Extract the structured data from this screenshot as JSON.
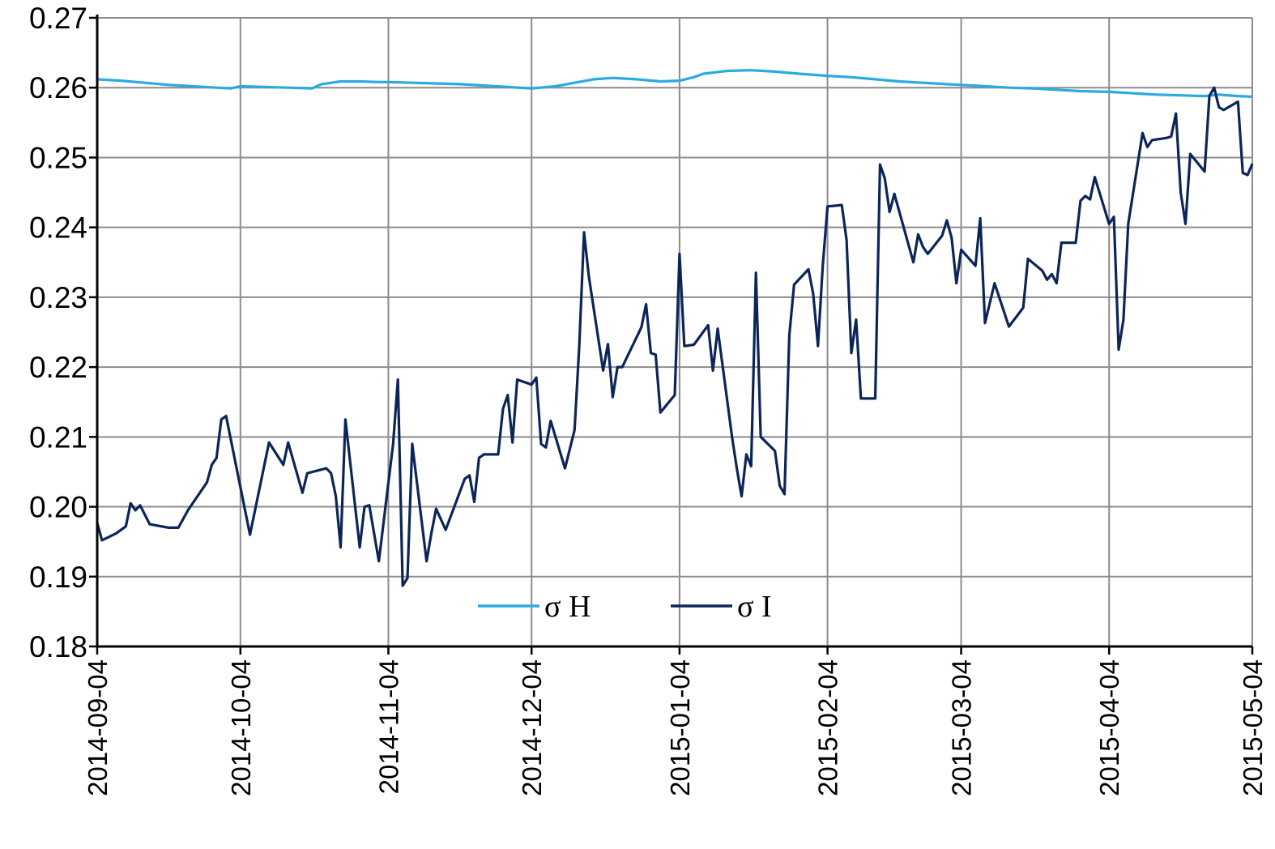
{
  "chart_data": {
    "type": "line",
    "title": "",
    "xlabel": "",
    "ylabel": "",
    "x_range": [
      "2014-09-04",
      "2015-05-04"
    ],
    "ylim": [
      0.18,
      0.27
    ],
    "y_ticks": [
      "0.18",
      "0.19",
      "0.20",
      "0.21",
      "0.22",
      "0.23",
      "0.24",
      "0.25",
      "0.26",
      "0.27"
    ],
    "x_ticks": [
      "2014-09-04",
      "2014-10-04",
      "2014-11-04",
      "2014-12-04",
      "2015-01-04",
      "2015-02-04",
      "2015-03-04",
      "2015-04-04",
      "2015-05-04"
    ],
    "grid": true,
    "legend_position": "bottom-center",
    "series": [
      {
        "name": "σ H",
        "color": "#29abe2",
        "points": [
          [
            "2014-09-04",
            0.2612
          ],
          [
            "2014-09-09",
            0.261
          ],
          [
            "2014-09-14",
            0.2607
          ],
          [
            "2014-09-19",
            0.2604
          ],
          [
            "2014-09-24",
            0.2602
          ],
          [
            "2014-09-29",
            0.26
          ],
          [
            "2014-10-02",
            0.2599
          ],
          [
            "2014-10-04",
            0.2602
          ],
          [
            "2014-10-09",
            0.2601
          ],
          [
            "2014-10-14",
            0.26
          ],
          [
            "2014-10-19",
            0.2599
          ],
          [
            "2014-10-21",
            0.2605
          ],
          [
            "2014-10-25",
            0.2609
          ],
          [
            "2014-10-29",
            0.2609
          ],
          [
            "2014-11-02",
            0.2608
          ],
          [
            "2014-11-04",
            0.2608
          ],
          [
            "2014-11-09",
            0.2607
          ],
          [
            "2014-11-14",
            0.2606
          ],
          [
            "2014-11-19",
            0.2605
          ],
          [
            "2014-11-24",
            0.2603
          ],
          [
            "2014-11-29",
            0.2601
          ],
          [
            "2014-12-04",
            0.2599
          ],
          [
            "2014-12-09",
            0.2602
          ],
          [
            "2014-12-13",
            0.2607
          ],
          [
            "2014-12-17",
            0.2612
          ],
          [
            "2014-12-21",
            0.2614
          ],
          [
            "2014-12-26",
            0.2612
          ],
          [
            "2014-12-31",
            0.2609
          ],
          [
            "2015-01-04",
            0.261
          ],
          [
            "2015-01-07",
            0.2615
          ],
          [
            "2015-01-09",
            0.262
          ],
          [
            "2015-01-14",
            0.2624
          ],
          [
            "2015-01-19",
            0.2625
          ],
          [
            "2015-01-24",
            0.2623
          ],
          [
            "2015-01-29",
            0.262
          ],
          [
            "2015-02-04",
            0.2617
          ],
          [
            "2015-02-09",
            0.2615
          ],
          [
            "2015-02-14",
            0.2612
          ],
          [
            "2015-02-19",
            0.2609
          ],
          [
            "2015-02-24",
            0.2607
          ],
          [
            "2015-03-01",
            0.2605
          ],
          [
            "2015-03-04",
            0.2604
          ],
          [
            "2015-03-09",
            0.2602
          ],
          [
            "2015-03-14",
            0.26
          ],
          [
            "2015-03-19",
            0.2599
          ],
          [
            "2015-03-24",
            0.2597
          ],
          [
            "2015-03-29",
            0.2595
          ],
          [
            "2015-04-04",
            0.2594
          ],
          [
            "2015-04-09",
            0.2592
          ],
          [
            "2015-04-14",
            0.259
          ],
          [
            "2015-04-19",
            0.2589
          ],
          [
            "2015-04-24",
            0.2588
          ],
          [
            "2015-04-27",
            0.259
          ],
          [
            "2015-05-01",
            0.2588
          ],
          [
            "2015-05-04",
            0.2587
          ]
        ]
      },
      {
        "name": "σ I",
        "color": "#0c2559",
        "points": [
          [
            "2014-09-04",
            0.1977
          ],
          [
            "2014-09-05",
            0.1952
          ],
          [
            "2014-09-08",
            0.1962
          ],
          [
            "2014-09-10",
            0.1972
          ],
          [
            "2014-09-11",
            0.2005
          ],
          [
            "2014-09-12",
            0.1995
          ],
          [
            "2014-09-13",
            0.2002
          ],
          [
            "2014-09-15",
            0.1975
          ],
          [
            "2014-09-19",
            0.197
          ],
          [
            "2014-09-21",
            0.197
          ],
          [
            "2014-09-23",
            0.1995
          ],
          [
            "2014-09-27",
            0.2035
          ],
          [
            "2014-09-28",
            0.206
          ],
          [
            "2014-09-29",
            0.207
          ],
          [
            "2014-09-30",
            0.2125
          ],
          [
            "2014-10-01",
            0.213
          ],
          [
            "2014-10-06",
            0.196
          ],
          [
            "2014-10-10",
            0.2092
          ],
          [
            "2014-10-13",
            0.206
          ],
          [
            "2014-10-14",
            0.2092
          ],
          [
            "2014-10-17",
            0.202
          ],
          [
            "2014-10-18",
            0.2048
          ],
          [
            "2014-10-22",
            0.2055
          ],
          [
            "2014-10-23",
            0.2048
          ],
          [
            "2014-10-24",
            0.2015
          ],
          [
            "2014-10-25",
            0.1942
          ],
          [
            "2014-10-26",
            0.2125
          ],
          [
            "2014-10-29",
            0.1942
          ],
          [
            "2014-10-30",
            0.2
          ],
          [
            "2014-10-31",
            0.2002
          ],
          [
            "2014-11-02",
            0.1922
          ],
          [
            "2014-11-05",
            0.209
          ],
          [
            "2014-11-06",
            0.2182
          ],
          [
            "2014-11-07",
            0.1887
          ],
          [
            "2014-11-08",
            0.1898
          ],
          [
            "2014-11-09",
            0.209
          ],
          [
            "2014-11-12",
            0.1922
          ],
          [
            "2014-11-13",
            0.1962
          ],
          [
            "2014-11-14",
            0.1997
          ],
          [
            "2014-11-16",
            0.1967
          ],
          [
            "2014-11-20",
            0.204
          ],
          [
            "2014-11-21",
            0.2045
          ],
          [
            "2014-11-22",
            0.2007
          ],
          [
            "2014-11-23",
            0.207
          ],
          [
            "2014-11-24",
            0.2075
          ],
          [
            "2014-11-27",
            0.2075
          ],
          [
            "2014-11-28",
            0.214
          ],
          [
            "2014-11-29",
            0.216
          ],
          [
            "2014-11-30",
            0.2092
          ],
          [
            "2014-12-01",
            0.2182
          ],
          [
            "2014-12-04",
            0.2175
          ],
          [
            "2014-12-05",
            0.2185
          ],
          [
            "2014-12-06",
            0.209
          ],
          [
            "2014-12-07",
            0.2085
          ],
          [
            "2014-12-08",
            0.2123
          ],
          [
            "2014-12-11",
            0.2055
          ],
          [
            "2014-12-13",
            0.211
          ],
          [
            "2014-12-14",
            0.223
          ],
          [
            "2014-12-15",
            0.2393
          ],
          [
            "2014-12-16",
            0.233
          ],
          [
            "2014-12-19",
            0.2195
          ],
          [
            "2014-12-20",
            0.2233
          ],
          [
            "2014-12-21",
            0.2157
          ],
          [
            "2014-12-22",
            0.22
          ],
          [
            "2014-12-23",
            0.22
          ],
          [
            "2014-12-27",
            0.2257
          ],
          [
            "2014-12-28",
            0.229
          ],
          [
            "2014-12-29",
            0.222
          ],
          [
            "2014-12-30",
            0.2218
          ],
          [
            "2014-12-31",
            0.2135
          ],
          [
            "2015-01-03",
            0.216
          ],
          [
            "2015-01-04",
            0.2362
          ],
          [
            "2015-01-05",
            0.223
          ],
          [
            "2015-01-07",
            0.2232
          ],
          [
            "2015-01-10",
            0.226
          ],
          [
            "2015-01-11",
            0.2195
          ],
          [
            "2015-01-12",
            0.2255
          ],
          [
            "2015-01-15",
            0.21
          ],
          [
            "2015-01-16",
            0.2055
          ],
          [
            "2015-01-17",
            0.2015
          ],
          [
            "2015-01-18",
            0.2075
          ],
          [
            "2015-01-19",
            0.2058
          ],
          [
            "2015-01-20",
            0.2335
          ],
          [
            "2015-01-21",
            0.21
          ],
          [
            "2015-01-24",
            0.208
          ],
          [
            "2015-01-25",
            0.203
          ],
          [
            "2015-01-26",
            0.2018
          ],
          [
            "2015-01-27",
            0.2245
          ],
          [
            "2015-01-28",
            0.2318
          ],
          [
            "2015-01-31",
            0.234
          ],
          [
            "2015-02-01",
            0.2305
          ],
          [
            "2015-02-02",
            0.223
          ],
          [
            "2015-02-03",
            0.2345
          ],
          [
            "2015-02-04",
            0.243
          ],
          [
            "2015-02-07",
            0.2432
          ],
          [
            "2015-02-08",
            0.2382
          ],
          [
            "2015-02-09",
            0.222
          ],
          [
            "2015-02-10",
            0.2268
          ],
          [
            "2015-02-11",
            0.2155
          ],
          [
            "2015-02-14",
            0.2155
          ],
          [
            "2015-02-15",
            0.249
          ],
          [
            "2015-02-16",
            0.247
          ],
          [
            "2015-02-17",
            0.2422
          ],
          [
            "2015-02-18",
            0.2448
          ],
          [
            "2015-02-22",
            0.235
          ],
          [
            "2015-02-23",
            0.239
          ],
          [
            "2015-02-24",
            0.2372
          ],
          [
            "2015-02-25",
            0.2362
          ],
          [
            "2015-02-28",
            0.2388
          ],
          [
            "2015-03-01",
            0.241
          ],
          [
            "2015-03-02",
            0.2385
          ],
          [
            "2015-03-03",
            0.232
          ],
          [
            "2015-03-04",
            0.2368
          ],
          [
            "2015-03-07",
            0.2345
          ],
          [
            "2015-03-08",
            0.2413
          ],
          [
            "2015-03-09",
            0.2263
          ],
          [
            "2015-03-11",
            0.232
          ],
          [
            "2015-03-14",
            0.2258
          ],
          [
            "2015-03-17",
            0.2285
          ],
          [
            "2015-03-18",
            0.2355
          ],
          [
            "2015-03-21",
            0.2338
          ],
          [
            "2015-03-22",
            0.2325
          ],
          [
            "2015-03-23",
            0.2333
          ],
          [
            "2015-03-24",
            0.232
          ],
          [
            "2015-03-25",
            0.2378
          ],
          [
            "2015-03-28",
            0.2378
          ],
          [
            "2015-03-29",
            0.2438
          ],
          [
            "2015-03-30",
            0.2445
          ],
          [
            "2015-03-31",
            0.244
          ],
          [
            "2015-04-01",
            0.2472
          ],
          [
            "2015-04-04",
            0.2405
          ],
          [
            "2015-04-05",
            0.2415
          ],
          [
            "2015-04-06",
            0.2225
          ],
          [
            "2015-04-07",
            0.2268
          ],
          [
            "2015-04-08",
            0.2405
          ],
          [
            "2015-04-11",
            0.2535
          ],
          [
            "2015-04-12",
            0.2515
          ],
          [
            "2015-04-13",
            0.2525
          ],
          [
            "2015-04-16",
            0.2528
          ],
          [
            "2015-04-17",
            0.253
          ],
          [
            "2015-04-18",
            0.2563
          ],
          [
            "2015-04-19",
            0.245
          ],
          [
            "2015-04-20",
            0.2405
          ],
          [
            "2015-04-21",
            0.2505
          ],
          [
            "2015-04-24",
            0.248
          ],
          [
            "2015-04-25",
            0.2588
          ],
          [
            "2015-04-26",
            0.26
          ],
          [
            "2015-04-27",
            0.2572
          ],
          [
            "2015-04-28",
            0.2568
          ],
          [
            "2015-05-01",
            0.258
          ],
          [
            "2015-05-02",
            0.2478
          ],
          [
            "2015-05-03",
            0.2475
          ],
          [
            "2015-05-04",
            0.2491
          ]
        ]
      }
    ]
  }
}
